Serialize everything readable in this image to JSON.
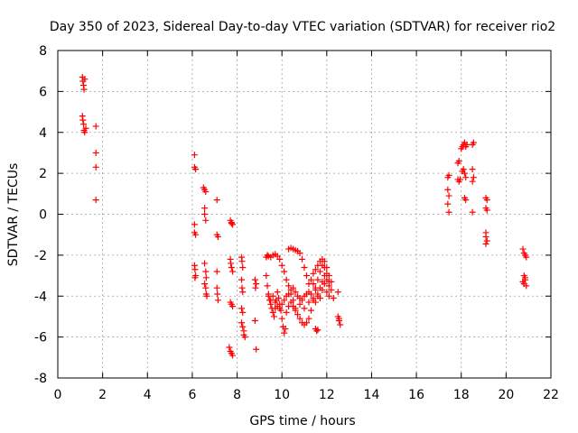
{
  "chart_data": {
    "type": "scatter",
    "title": "Day 350 of 2023, Sidereal Day-to-day VTEC variation (SDTVAR) for receiver rio2",
    "xlabel": "GPS time / hours",
    "ylabel": "SDTVAR / TECUs",
    "xlim": [
      0,
      22
    ],
    "ylim": [
      -8,
      8
    ],
    "xticks": [
      0,
      2,
      4,
      6,
      8,
      10,
      12,
      14,
      16,
      18,
      20,
      22
    ],
    "yticks": [
      -8,
      -6,
      -4,
      -2,
      0,
      2,
      4,
      6,
      8
    ],
    "grid": true,
    "marker": "+",
    "color": "#ff0000",
    "series": [
      {
        "name": "rio2",
        "points": [
          [
            1.1,
            6.7
          ],
          [
            1.12,
            6.5
          ],
          [
            1.15,
            6.3
          ],
          [
            1.17,
            6.1
          ],
          [
            1.2,
            6.6
          ],
          [
            1.1,
            4.8
          ],
          [
            1.12,
            4.6
          ],
          [
            1.15,
            4.4
          ],
          [
            1.17,
            4.1
          ],
          [
            1.2,
            4.0
          ],
          [
            1.25,
            4.2
          ],
          [
            1.7,
            4.3
          ],
          [
            1.7,
            3.0
          ],
          [
            1.7,
            2.3
          ],
          [
            1.7,
            0.7
          ],
          [
            6.1,
            2.9
          ],
          [
            6.1,
            2.3
          ],
          [
            6.15,
            2.2
          ],
          [
            6.1,
            -0.5
          ],
          [
            6.1,
            -0.9
          ],
          [
            6.15,
            -1.0
          ],
          [
            6.1,
            -2.5
          ],
          [
            6.12,
            -2.7
          ],
          [
            6.15,
            -3.0
          ],
          [
            6.12,
            -3.1
          ],
          [
            6.5,
            1.3
          ],
          [
            6.55,
            1.2
          ],
          [
            6.6,
            1.1
          ],
          [
            6.55,
            0.3
          ],
          [
            6.55,
            0.0
          ],
          [
            6.6,
            -0.3
          ],
          [
            6.55,
            -2.4
          ],
          [
            6.6,
            -2.8
          ],
          [
            6.62,
            -3.1
          ],
          [
            6.55,
            -3.4
          ],
          [
            6.6,
            -3.6
          ],
          [
            6.62,
            -3.9
          ],
          [
            6.65,
            -4.0
          ],
          [
            7.1,
            0.7
          ],
          [
            7.1,
            -1.0
          ],
          [
            7.15,
            -1.1
          ],
          [
            7.1,
            -2.8
          ],
          [
            7.1,
            -3.6
          ],
          [
            7.12,
            -3.9
          ],
          [
            7.15,
            -4.2
          ],
          [
            7.7,
            -0.3
          ],
          [
            7.75,
            -0.45
          ],
          [
            7.8,
            -0.5
          ],
          [
            7.75,
            -0.4
          ],
          [
            7.7,
            -2.2
          ],
          [
            7.72,
            -2.4
          ],
          [
            7.75,
            -2.6
          ],
          [
            7.8,
            -2.8
          ],
          [
            7.7,
            -4.3
          ],
          [
            7.75,
            -4.4
          ],
          [
            7.8,
            -4.5
          ],
          [
            7.65,
            -6.5
          ],
          [
            7.7,
            -6.7
          ],
          [
            7.75,
            -6.8
          ],
          [
            7.8,
            -6.9
          ],
          [
            8.2,
            -2.1
          ],
          [
            8.22,
            -2.3
          ],
          [
            8.25,
            -2.6
          ],
          [
            8.2,
            -3.2
          ],
          [
            8.22,
            -3.6
          ],
          [
            8.25,
            -3.8
          ],
          [
            8.2,
            -4.6
          ],
          [
            8.25,
            -4.8
          ],
          [
            8.2,
            -5.3
          ],
          [
            8.25,
            -5.5
          ],
          [
            8.3,
            -5.7
          ],
          [
            8.3,
            -5.9
          ],
          [
            8.35,
            -6.0
          ],
          [
            8.8,
            -3.2
          ],
          [
            8.82,
            -3.6
          ],
          [
            8.85,
            -3.4
          ],
          [
            8.8,
            -5.2
          ],
          [
            8.85,
            -6.6
          ],
          [
            9.3,
            -2.1
          ],
          [
            9.35,
            -2.0
          ],
          [
            9.4,
            -2.05
          ],
          [
            9.5,
            -2.1
          ],
          [
            9.6,
            -2.0
          ],
          [
            9.7,
            -1.95
          ],
          [
            9.8,
            -2.05
          ],
          [
            9.9,
            -2.2
          ],
          [
            10.0,
            -2.5
          ],
          [
            10.1,
            -2.8
          ],
          [
            10.2,
            -3.2
          ],
          [
            10.3,
            -3.5
          ],
          [
            10.4,
            -3.9
          ],
          [
            10.5,
            -4.2
          ],
          [
            10.6,
            -4.6
          ],
          [
            10.7,
            -4.9
          ],
          [
            10.8,
            -5.1
          ],
          [
            10.9,
            -5.3
          ],
          [
            11.0,
            -5.4
          ],
          [
            11.1,
            -5.3
          ],
          [
            11.2,
            -5.1
          ],
          [
            11.3,
            -4.7
          ],
          [
            11.4,
            -4.2
          ],
          [
            11.5,
            -3.7
          ],
          [
            11.6,
            -3.2
          ],
          [
            11.7,
            -2.8
          ],
          [
            11.8,
            -2.5
          ],
          [
            11.9,
            -2.6
          ],
          [
            12.0,
            -2.9
          ],
          [
            12.1,
            -3.3
          ],
          [
            12.2,
            -3.7
          ],
          [
            12.3,
            -4.1
          ],
          [
            9.3,
            -3.0
          ],
          [
            9.35,
            -3.5
          ],
          [
            9.4,
            -3.9
          ],
          [
            9.45,
            -4.2
          ],
          [
            9.5,
            -4.4
          ],
          [
            9.55,
            -4.6
          ],
          [
            9.6,
            -4.8
          ],
          [
            9.65,
            -5.0
          ],
          [
            9.7,
            -4.6
          ],
          [
            9.75,
            -4.2
          ],
          [
            9.8,
            -3.8
          ],
          [
            9.85,
            -4.1
          ],
          [
            9.9,
            -4.4
          ],
          [
            9.95,
            -4.7
          ],
          [
            10.0,
            -5.1
          ],
          [
            10.05,
            -5.5
          ],
          [
            10.1,
            -5.8
          ],
          [
            10.15,
            -5.6
          ],
          [
            9.4,
            -4.0
          ],
          [
            9.5,
            -4.2
          ],
          [
            9.6,
            -4.0
          ],
          [
            9.7,
            -4.3
          ],
          [
            9.8,
            -4.5
          ],
          [
            9.9,
            -4.6
          ],
          [
            10.0,
            -4.4
          ],
          [
            10.1,
            -4.2
          ],
          [
            10.2,
            -4.0
          ],
          [
            10.3,
            -3.9
          ],
          [
            10.4,
            -3.7
          ],
          [
            10.5,
            -3.6
          ],
          [
            10.6,
            -3.8
          ],
          [
            10.7,
            -4.0
          ],
          [
            10.8,
            -4.1
          ],
          [
            10.9,
            -4.2
          ],
          [
            11.0,
            -4.0
          ],
          [
            11.1,
            -3.9
          ],
          [
            11.2,
            -3.8
          ],
          [
            11.3,
            -3.9
          ],
          [
            11.4,
            -4.1
          ],
          [
            11.5,
            -4.3
          ],
          [
            11.6,
            -4.0
          ],
          [
            11.7,
            -3.6
          ],
          [
            11.8,
            -3.3
          ],
          [
            11.9,
            -3.0
          ],
          [
            12.0,
            -3.2
          ],
          [
            12.1,
            -3.5
          ],
          [
            10.3,
            -1.7
          ],
          [
            10.4,
            -1.65
          ],
          [
            10.5,
            -1.7
          ],
          [
            10.6,
            -1.75
          ],
          [
            10.7,
            -1.8
          ],
          [
            10.8,
            -1.9
          ],
          [
            10.9,
            -2.2
          ],
          [
            11.0,
            -2.6
          ],
          [
            11.1,
            -3.0
          ],
          [
            11.2,
            -3.4
          ],
          [
            11.3,
            -3.2
          ],
          [
            11.4,
            -2.9
          ],
          [
            11.5,
            -2.7
          ],
          [
            11.6,
            -2.5
          ],
          [
            11.7,
            -2.3
          ],
          [
            11.8,
            -2.2
          ],
          [
            11.9,
            -2.3
          ],
          [
            12.0,
            -2.6
          ],
          [
            12.1,
            -3.0
          ],
          [
            12.2,
            -3.3
          ],
          [
            10.2,
            -4.8
          ],
          [
            10.3,
            -4.5
          ],
          [
            10.4,
            -4.3
          ],
          [
            10.5,
            -4.5
          ],
          [
            10.6,
            -4.7
          ],
          [
            10.8,
            -4.4
          ],
          [
            11.0,
            -4.6
          ],
          [
            11.2,
            -4.3
          ],
          [
            11.4,
            -3.4
          ],
          [
            11.5,
            -3.6
          ],
          [
            11.6,
            -3.9
          ],
          [
            11.7,
            -4.1
          ],
          [
            11.8,
            -3.7
          ],
          [
            11.9,
            -3.4
          ],
          [
            12.0,
            -3.8
          ],
          [
            12.1,
            -4.0
          ],
          [
            11.5,
            -5.6
          ],
          [
            11.55,
            -5.7
          ],
          [
            11.6,
            -5.65
          ],
          [
            12.5,
            -3.8
          ],
          [
            12.5,
            -5.0
          ],
          [
            12.55,
            -5.2
          ],
          [
            12.6,
            -5.4
          ],
          [
            12.55,
            -5.1
          ],
          [
            17.4,
            1.8
          ],
          [
            17.45,
            1.9
          ],
          [
            17.4,
            1.2
          ],
          [
            17.45,
            0.9
          ],
          [
            17.4,
            0.5
          ],
          [
            17.45,
            0.1
          ],
          [
            17.85,
            2.5
          ],
          [
            17.9,
            2.6
          ],
          [
            17.85,
            1.7
          ],
          [
            17.9,
            1.6
          ],
          [
            17.95,
            1.7
          ],
          [
            18.0,
            3.2
          ],
          [
            18.05,
            3.3
          ],
          [
            18.1,
            3.4
          ],
          [
            18.15,
            3.5
          ],
          [
            18.2,
            3.3
          ],
          [
            18.25,
            3.4
          ],
          [
            18.05,
            2.1
          ],
          [
            18.1,
            2.2
          ],
          [
            18.15,
            2.0
          ],
          [
            18.2,
            1.8
          ],
          [
            18.15,
            0.8
          ],
          [
            18.2,
            0.7
          ],
          [
            18.5,
            3.4
          ],
          [
            18.55,
            3.5
          ],
          [
            18.5,
            2.2
          ],
          [
            18.55,
            1.8
          ],
          [
            18.5,
            1.6
          ],
          [
            18.5,
            0.1
          ],
          [
            19.1,
            0.8
          ],
          [
            19.15,
            0.7
          ],
          [
            19.1,
            0.3
          ],
          [
            19.15,
            0.2
          ],
          [
            19.1,
            -0.9
          ],
          [
            19.1,
            -1.1
          ],
          [
            19.15,
            -1.3
          ],
          [
            19.1,
            -1.45
          ],
          [
            20.75,
            -1.7
          ],
          [
            20.8,
            -1.9
          ],
          [
            20.85,
            -2.0
          ],
          [
            20.9,
            -2.1
          ],
          [
            20.8,
            -3.0
          ],
          [
            20.85,
            -3.2
          ],
          [
            20.75,
            -3.3
          ],
          [
            20.8,
            -3.4
          ],
          [
            20.9,
            -3.5
          ],
          [
            20.85,
            -3.1
          ]
        ]
      }
    ]
  }
}
